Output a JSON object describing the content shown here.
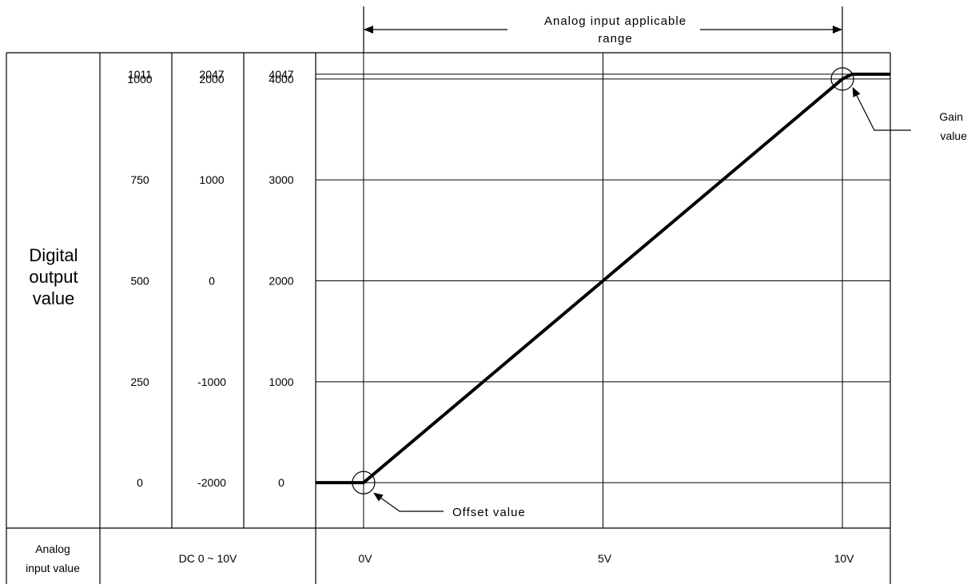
{
  "chart_data": {
    "type": "line",
    "xlabel": "Analog input value",
    "input_range": "DC 0 ~ 10V",
    "x_tick_labels": [
      "0V",
      "5V",
      "10V"
    ],
    "x_ticks": [
      0,
      5,
      10
    ],
    "ylabel": "Digital output value",
    "y_columns": [
      {
        "labels": [
          "1011",
          "1000",
          "750",
          "500",
          "250",
          "0"
        ]
      },
      {
        "labels": [
          "2047",
          "2000",
          "1000",
          "0",
          "-1000",
          "-2000"
        ]
      },
      {
        "labels": [
          "4047",
          "4000",
          "3000",
          "2000",
          "1000",
          "0"
        ]
      }
    ],
    "y_ticks": [
      4047,
      4000,
      3000,
      2000,
      1000,
      0
    ],
    "xlim": [
      -1,
      11
    ],
    "ylim": [
      -450,
      4260
    ],
    "series": [
      {
        "x": [
          -1,
          0,
          10,
          10.2,
          11
        ],
        "y": [
          0,
          0,
          4000,
          4047,
          4047
        ]
      }
    ],
    "annotations": {
      "range_label_line1": "Analog input applicable",
      "range_label_line2": "range",
      "offset_label": "Offset value",
      "gain_label_line1": "Gain",
      "gain_label_line2": "value"
    },
    "ylabel_lines": [
      "Digital",
      "output",
      "value"
    ],
    "xlabel_lines": [
      "Analog",
      "input value"
    ]
  }
}
